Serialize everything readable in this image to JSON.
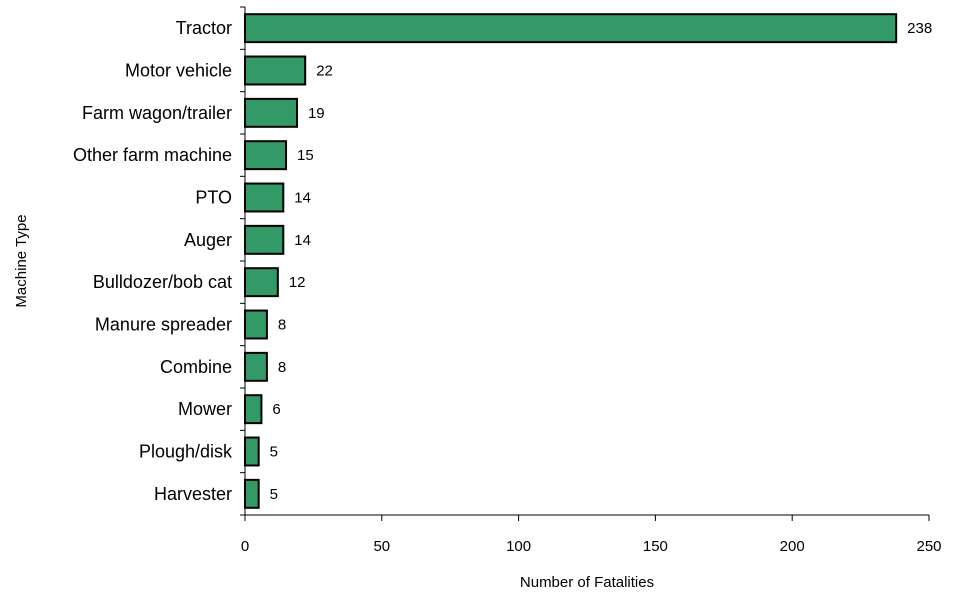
{
  "chart_data": {
    "type": "bar",
    "orientation": "horizontal",
    "categories": [
      "Tractor",
      "Motor vehicle",
      "Farm wagon/trailer",
      "Other farm machine",
      "PTO",
      "Auger",
      "Bulldozer/bob cat",
      "Manure spreader",
      "Combine",
      "Mower",
      "Plough/disk",
      "Harvester"
    ],
    "values": [
      238,
      22,
      19,
      15,
      14,
      14,
      12,
      8,
      8,
      6,
      5,
      5
    ],
    "value_labels": [
      "238",
      "22",
      "19",
      "15",
      "14",
      "14",
      "12",
      "8",
      "8",
      "6",
      "5",
      "5"
    ],
    "xlabel": "Number of Fatalities",
    "ylabel": "Machine Type",
    "xlim": [
      0,
      250
    ],
    "xticks": [
      0,
      50,
      100,
      150,
      200,
      250
    ],
    "xtick_labels": [
      "0",
      "50",
      "100",
      "150",
      "200",
      "250"
    ],
    "grid": false,
    "bar_color": "#339966",
    "bar_edge_color": "#000000"
  }
}
